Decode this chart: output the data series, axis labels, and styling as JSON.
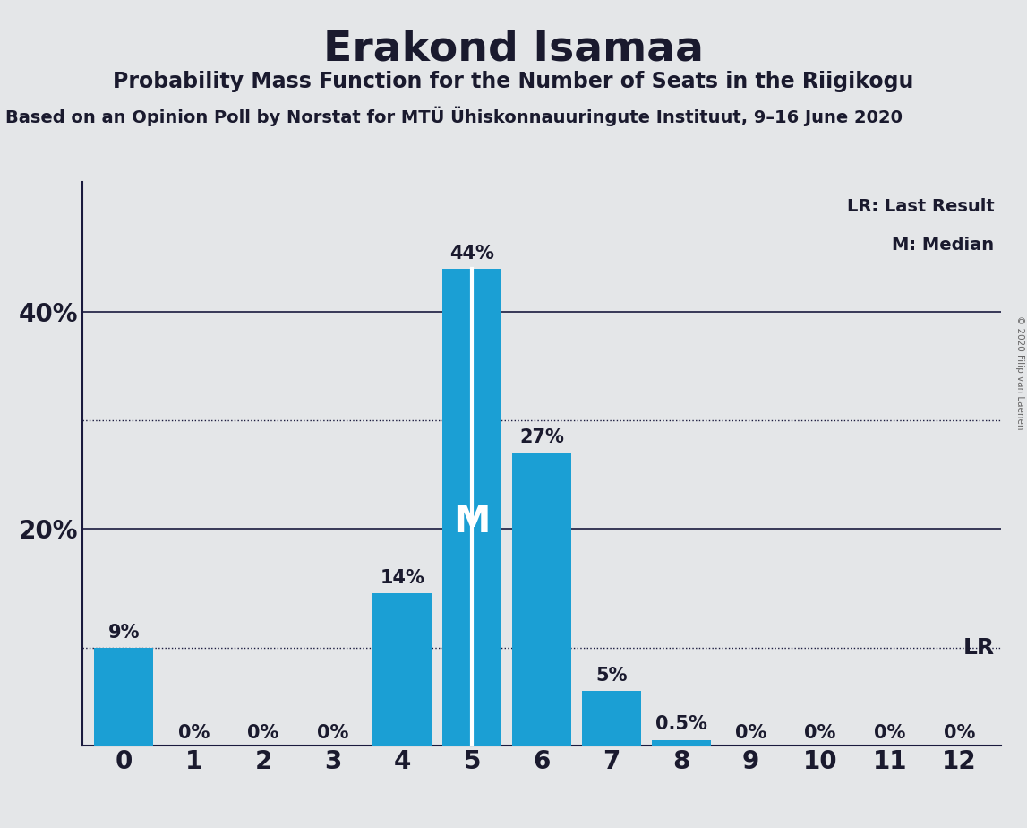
{
  "title": "Erakond Isamaa",
  "subtitle": "Probability Mass Function for the Number of Seats in the Riigikogu",
  "source": "Based on an Opinion Poll by Norstat for MTÜ Ühiskonnauuringute Instituut, 9–16 June 2020",
  "copyright": "© 2020 Filip van Laenen",
  "categories": [
    0,
    1,
    2,
    3,
    4,
    5,
    6,
    7,
    8,
    9,
    10,
    11,
    12
  ],
  "values": [
    9,
    0,
    0,
    0,
    14,
    44,
    27,
    5,
    0.5,
    0,
    0,
    0,
    0
  ],
  "labels": [
    "9%",
    "0%",
    "0%",
    "0%",
    "14%",
    "44%",
    "27%",
    "5%",
    "0.5%",
    "0%",
    "0%",
    "0%",
    "0%"
  ],
  "bar_color": "#1b9fd4",
  "background_color": "#e4e6e8",
  "median_bar_idx": 5,
  "lr_bar_idx": 12,
  "legend_lr": "LR: Last Result",
  "legend_m": "M: Median",
  "dotted_line_values": [
    9,
    30
  ],
  "solid_line_values": [
    20,
    40
  ],
  "ytick_values": [
    20,
    40
  ],
  "ytick_labels": [
    "20%",
    "40%"
  ],
  "ylim": [
    0,
    52
  ],
  "xlim": [
    -0.6,
    12.6
  ],
  "lr_y_pos": 9.0
}
